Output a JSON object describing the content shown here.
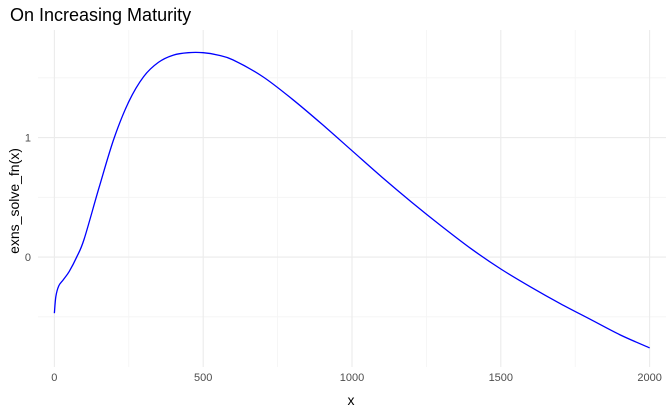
{
  "chart_data": {
    "type": "line",
    "title": "On Increasing Maturity",
    "xlabel": "x",
    "ylabel": "exns_solve_fn(x)",
    "xlim": [
      -55,
      2055
    ],
    "ylim": [
      -0.92,
      1.9
    ],
    "x_ticks": [
      0,
      500,
      1000,
      1500,
      2000
    ],
    "x_tick_labels": [
      "0",
      "500",
      "1000",
      "1500",
      "2000"
    ],
    "y_ticks": [
      0,
      1
    ],
    "y_tick_labels": [
      "0",
      "1"
    ],
    "grid": true,
    "legend": "none",
    "series": [
      {
        "color": "#0000ff",
        "x": [
          0,
          5,
          15,
          30,
          50,
          75,
          100,
          150,
          200,
          250,
          300,
          350,
          400,
          450,
          500,
          550,
          600,
          700,
          800,
          900,
          1000,
          1100,
          1200,
          1300,
          1400,
          1500,
          1600,
          1700,
          1800,
          1900,
          2000
        ],
        "y": [
          -0.47,
          -0.33,
          -0.24,
          -0.19,
          -0.12,
          0.0,
          0.15,
          0.58,
          0.99,
          1.3,
          1.51,
          1.63,
          1.69,
          1.71,
          1.71,
          1.69,
          1.65,
          1.51,
          1.32,
          1.11,
          0.89,
          0.67,
          0.46,
          0.26,
          0.07,
          -0.1,
          -0.25,
          -0.39,
          -0.52,
          -0.65,
          -0.76
        ]
      }
    ]
  }
}
